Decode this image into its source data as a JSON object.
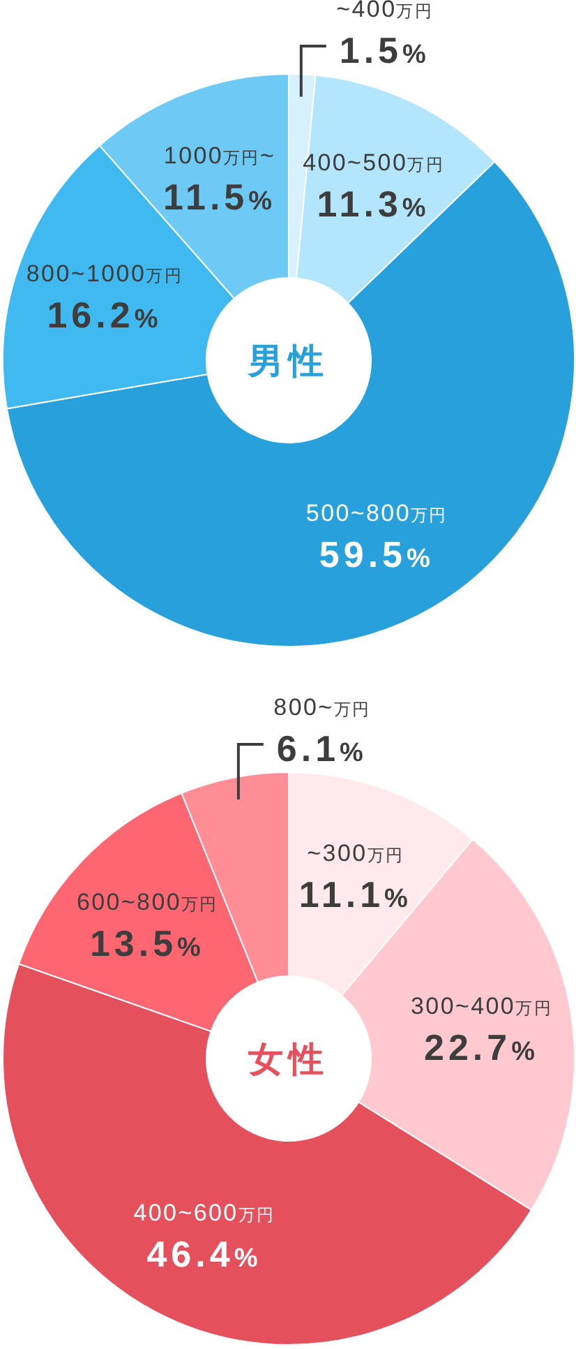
{
  "chart_data": [
    {
      "type": "donut",
      "title": "男性",
      "categories": [
        "~400万円",
        "400~500万円",
        "500~800万円",
        "800~1000万円",
        "1000万円~"
      ],
      "values": [
        1.5,
        11.3,
        59.5,
        16.2,
        11.5
      ],
      "colors": [
        "#d6f0fc",
        "#b3e5fc",
        "#28a0dc",
        "#40b8f0",
        "#6dcaf5"
      ],
      "value_labels": [
        "1.5%",
        "11.3%",
        "59.5%",
        "16.2%",
        "11.5%"
      ]
    },
    {
      "type": "donut",
      "title": "女性",
      "categories": [
        "~300万円",
        "300~400万円",
        "400~600万円",
        "600~800万円",
        "800~万円"
      ],
      "values": [
        11.1,
        22.7,
        46.4,
        13.5,
        6.1
      ],
      "colors": [
        "#ffe9ec",
        "#ffc9cf",
        "#e4505c",
        "#fe6672",
        "#fe8d95"
      ],
      "value_labels": [
        "11.1%",
        "22.7%",
        "46.4%",
        "13.5%",
        "6.1%"
      ]
    }
  ]
}
